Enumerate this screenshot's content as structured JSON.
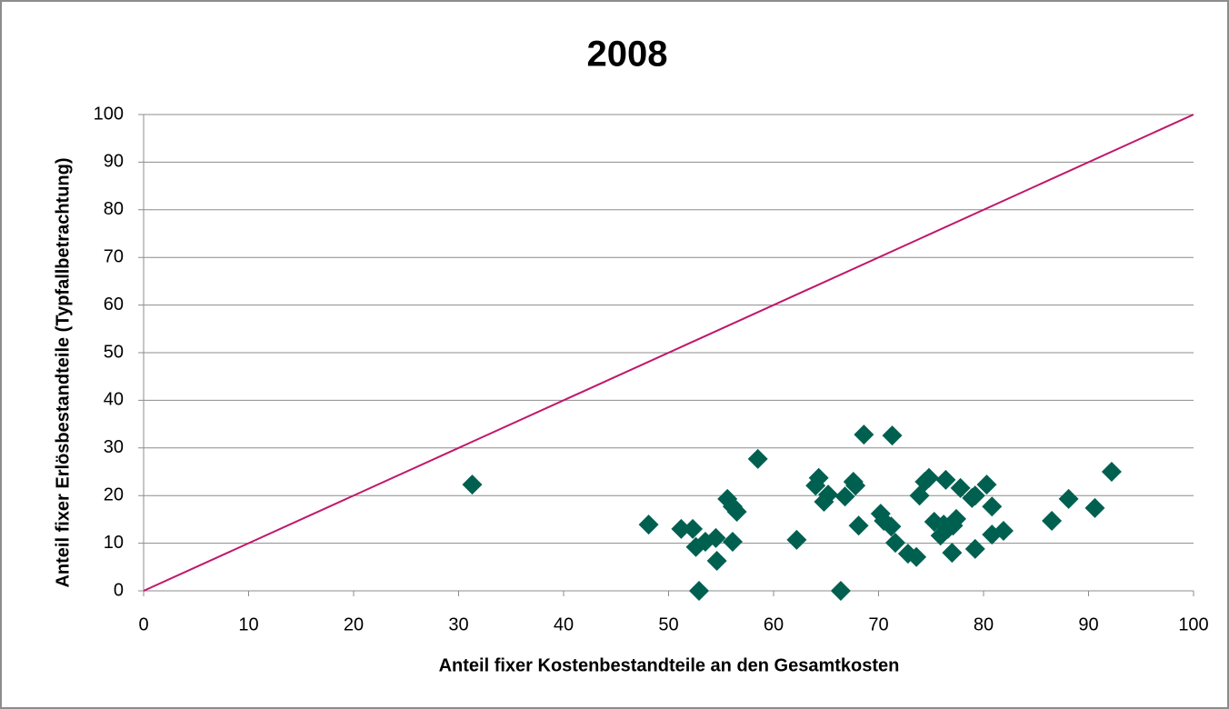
{
  "chart_data": {
    "type": "scatter",
    "title": "2008",
    "x_label": "Anteil fixer Kostenbestandteile an den Gesamtkosten",
    "y_label": "Anteil fixer Erlösbestandteile  (Typfallbetrachtung)",
    "xlim": [
      0,
      100
    ],
    "ylim": [
      0,
      100
    ],
    "xticks": [
      0,
      10,
      20,
      30,
      40,
      50,
      60,
      70,
      80,
      90,
      100
    ],
    "yticks": [
      0,
      10,
      20,
      30,
      40,
      50,
      60,
      70,
      80,
      90,
      100
    ],
    "grid": true,
    "series": [
      {
        "color": "#006050",
        "marker": "diamond",
        "x": [
          31.3,
          48.1,
          51.2,
          52.3,
          52.6,
          53.5,
          52.9,
          54.5,
          54.6,
          55.6,
          56.1,
          56.5,
          56.1,
          58.5,
          62.2,
          64.3,
          64.0,
          64.8,
          65.2,
          66.4,
          66.8,
          67.6,
          67.8,
          68.1,
          68.6,
          70.2,
          70.5,
          71.2,
          71.3,
          71.6,
          72.8,
          73.6,
          73.9,
          74.4,
          74.8,
          75.3,
          75.9,
          76.2,
          76.4,
          76.6,
          77.0,
          77.1,
          77.4,
          77.8,
          78.9,
          79.2,
          79.2,
          80.3,
          80.8,
          80.8,
          81.9,
          86.5,
          88.1,
          90.6,
          92.2
        ],
        "values": [
          22.3,
          13.9,
          13.0,
          13.0,
          9.2,
          10.3,
          0,
          11.1,
          6.3,
          19.3,
          17.7,
          16.6,
          10.3,
          27.7,
          10.7,
          23.7,
          22.1,
          18.7,
          20.2,
          0,
          19.8,
          22.9,
          22.1,
          13.7,
          32.8,
          16.2,
          14.7,
          13.5,
          32.6,
          10.1,
          7.8,
          7.1,
          20.0,
          22.9,
          23.7,
          14.5,
          11.6,
          13.9,
          23.3,
          13.0,
          8.0,
          13.7,
          15.1,
          21.6,
          19.5,
          20.0,
          8.8,
          22.3,
          17.7,
          11.8,
          12.6,
          14.7,
          19.3,
          17.4,
          25.0
        ]
      },
      {
        "color": "#c0186a",
        "marker": "line",
        "x": [
          0,
          100
        ],
        "values": [
          0,
          100
        ]
      }
    ]
  }
}
